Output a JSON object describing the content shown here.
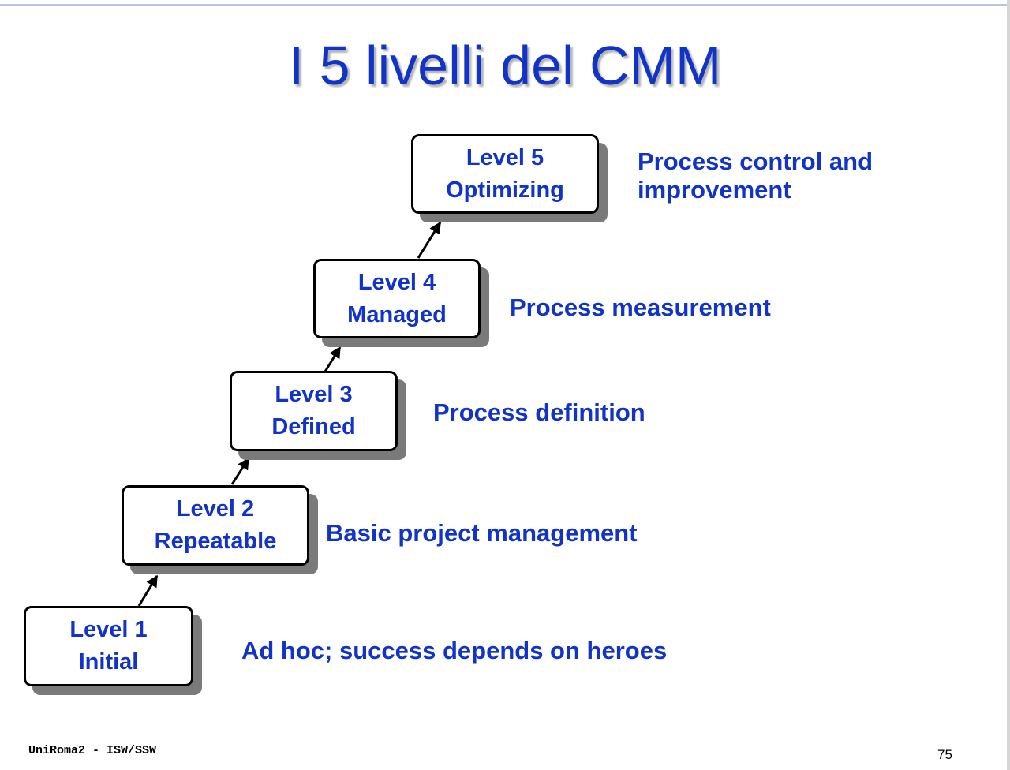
{
  "slide": {
    "title": "I 5 livelli del CMM",
    "footer": "UniRoma2 - ISW/SSW",
    "page_number": "75"
  },
  "levels": [
    {
      "name": "Level 1",
      "label": "Initial",
      "description": "Ad hoc; success depends on heroes"
    },
    {
      "name": "Level 2",
      "label": "Repeatable",
      "description": "Basic project management"
    },
    {
      "name": "Level 3",
      "label": "Defined",
      "description": "Process definition"
    },
    {
      "name": "Level 4",
      "label": "Managed",
      "description": "Process measurement"
    },
    {
      "name": "Level 5",
      "label": "Optimizing",
      "description": "Process control and improvement"
    }
  ],
  "colors": {
    "text_blue": "#1133c8",
    "box_border": "#000000",
    "box_shadow": "#7a7a7a"
  }
}
